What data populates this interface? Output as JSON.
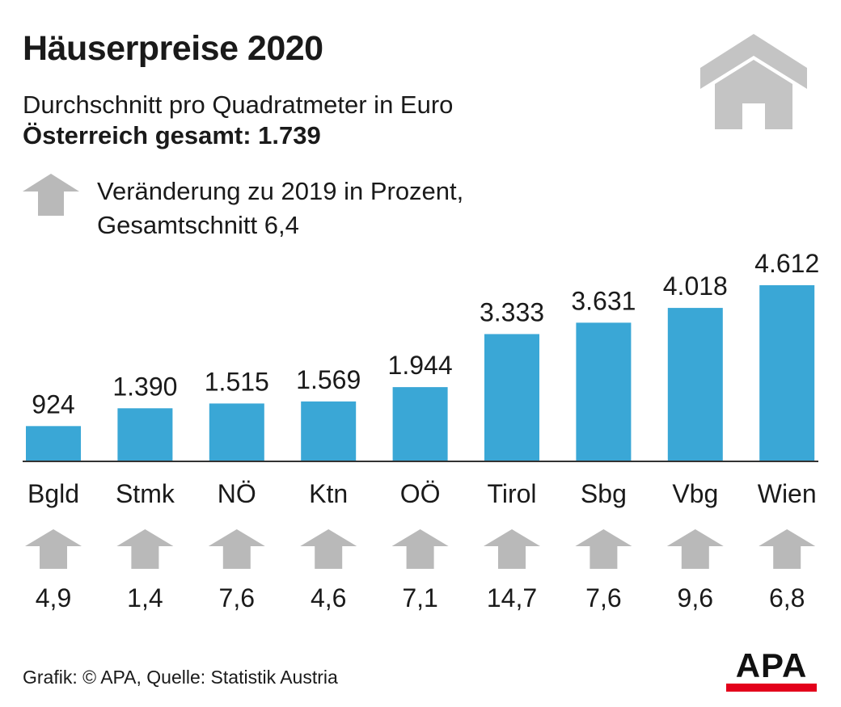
{
  "title": "Häuserpreise 2020",
  "subtitle": "Durchschnitt pro Quadratmeter in Euro",
  "total": "Österreich gesamt: 1.739",
  "legend": {
    "line1": "Veränderung zu 2019 in Prozent,",
    "line2": "Gesamtschnitt 6,4",
    "icon": "arrow-up-icon"
  },
  "footer": "Grafik: © APA, Quelle: Statistik Austria",
  "logo": "APA",
  "colors": {
    "bar": "#3aa7d6",
    "arrow": "#b9b9b9",
    "house": "#c4c4c4",
    "logo_bar": "#e3001b"
  },
  "chart_data": {
    "type": "bar",
    "categories": [
      "Bgld",
      "Stmk",
      "NÖ",
      "Ktn",
      "OÖ",
      "Tirol",
      "Sbg",
      "Vbg",
      "Wien"
    ],
    "values": [
      924,
      1390,
      1515,
      1569,
      1944,
      3333,
      3631,
      4018,
      4612
    ],
    "value_labels": [
      "924",
      "1.390",
      "1.515",
      "1.569",
      "1.944",
      "3.333",
      "3.631",
      "4.018",
      "4.612"
    ],
    "change_labels": [
      "4,9",
      "1,4",
      "7,6",
      "4,6",
      "7,1",
      "14,7",
      "7,6",
      "9,6",
      "6,8"
    ],
    "change_values": [
      4.9,
      1.4,
      7.6,
      4.6,
      7.1,
      14.7,
      7.6,
      9.6,
      6.8
    ],
    "xlabel": "",
    "ylabel": "",
    "grid": false
  }
}
